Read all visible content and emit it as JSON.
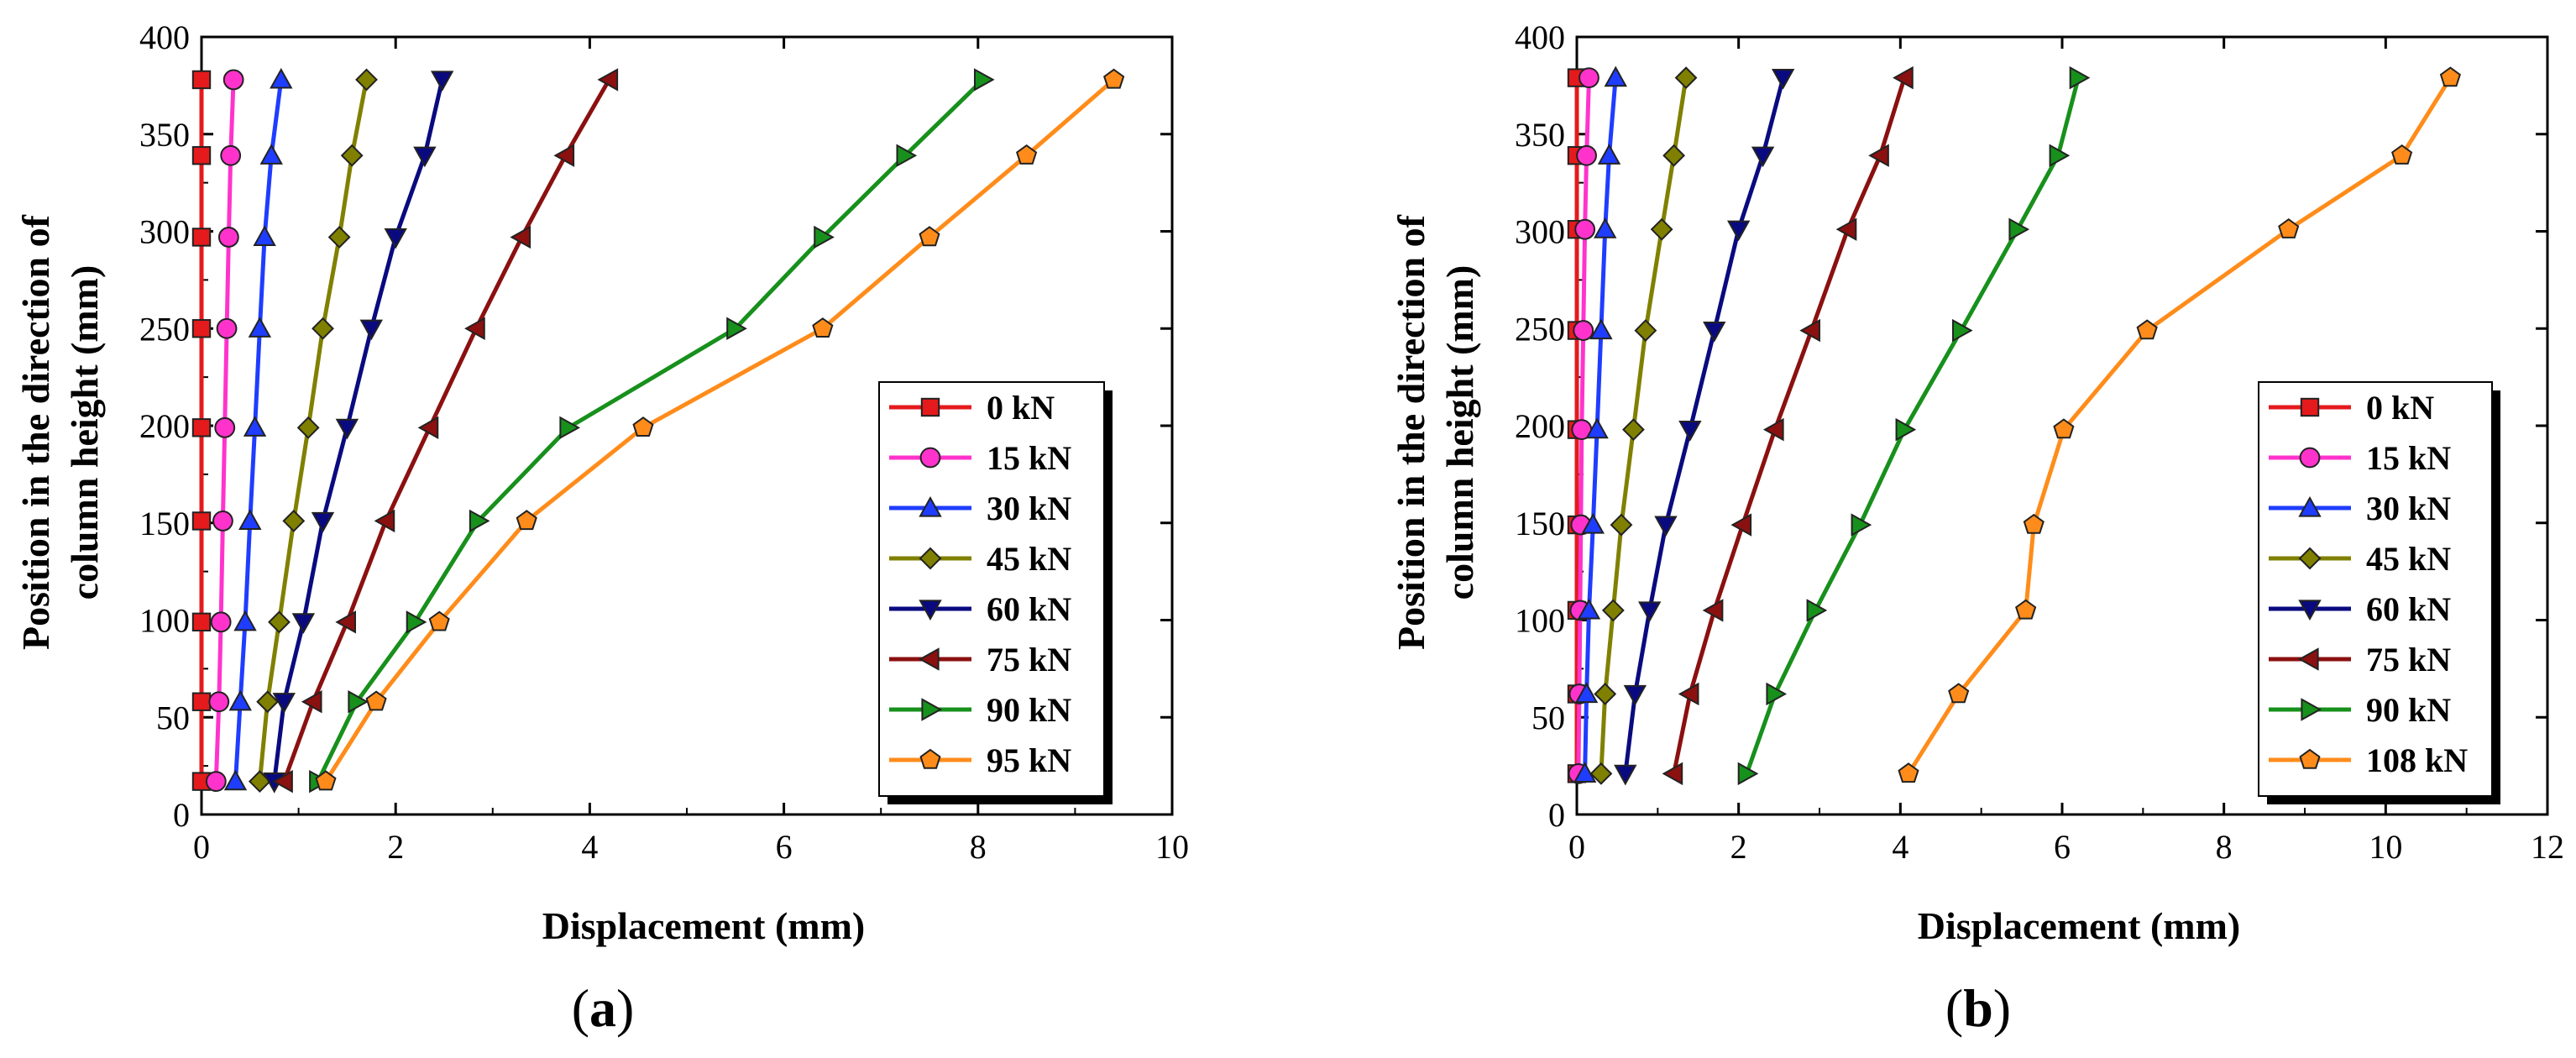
{
  "colors": {
    "0 kN": "#e41a1c",
    "15 kN": "#ff33cc",
    "30 kN": "#1f3dff",
    "45 kN": "#808000",
    "60 kN": "#0a0a80",
    "75 kN": "#8b1010",
    "90 kN": "#17901c",
    "95 kN": "#ff8c1a",
    "108 kN": "#ff8c1a"
  },
  "markers": {
    "0 kN": "square",
    "15 kN": "circle",
    "30 kN": "triangle-up",
    "45 kN": "diamond",
    "60 kN": "triangle-down",
    "75 kN": "triangle-left",
    "90 kN": "triangle-right",
    "95 kN": "pentagon",
    "108 kN": "pentagon"
  },
  "chart_data": [
    {
      "type": "line",
      "panel_label": "a",
      "xlabel": "Displacement (mm)",
      "ylabel_line1": "Position  in the direction of",
      "ylabel_line2": "column height (mm)",
      "xlim": [
        0,
        10
      ],
      "ylim": [
        0,
        400
      ],
      "xticks": [
        0,
        2,
        4,
        6,
        8,
        10
      ],
      "yticks": [
        0,
        50,
        100,
        150,
        200,
        250,
        300,
        350,
        400
      ],
      "legend_position": "bottom-right",
      "series": [
        {
          "name": "0 kN",
          "x": [
            0,
            0,
            0,
            0,
            0,
            0,
            0,
            0,
            0
          ],
          "y": [
            17,
            58,
            99,
            151,
            199,
            250,
            297,
            339,
            378
          ]
        },
        {
          "name": "15 kN",
          "x": [
            0.15,
            0.18,
            0.2,
            0.22,
            0.24,
            0.26,
            0.28,
            0.3,
            0.33
          ],
          "y": [
            17,
            58,
            99,
            151,
            199,
            250,
            297,
            339,
            378
          ]
        },
        {
          "name": "30 kN",
          "x": [
            0.35,
            0.4,
            0.45,
            0.5,
            0.55,
            0.6,
            0.65,
            0.72,
            0.82
          ],
          "y": [
            17,
            58,
            99,
            151,
            199,
            250,
            297,
            339,
            378
          ]
        },
        {
          "name": "45 kN",
          "x": [
            0.6,
            0.68,
            0.8,
            0.95,
            1.1,
            1.25,
            1.42,
            1.55,
            1.7
          ],
          "y": [
            17,
            58,
            99,
            151,
            199,
            250,
            297,
            339,
            378
          ]
        },
        {
          "name": "60 kN",
          "x": [
            0.75,
            0.85,
            1.05,
            1.25,
            1.5,
            1.75,
            2.0,
            2.3,
            2.48
          ],
          "y": [
            17,
            58,
            99,
            151,
            199,
            250,
            297,
            339,
            378
          ]
        },
        {
          "name": "75 kN",
          "x": [
            0.85,
            1.15,
            1.5,
            1.9,
            2.35,
            2.83,
            3.3,
            3.75,
            4.2
          ],
          "y": [
            17,
            58,
            99,
            151,
            199,
            250,
            297,
            339,
            378
          ]
        },
        {
          "name": "90 kN",
          "x": [
            1.2,
            1.6,
            2.2,
            2.85,
            3.78,
            5.5,
            6.4,
            7.25,
            8.05
          ],
          "y": [
            17,
            58,
            99,
            151,
            199,
            250,
            297,
            339,
            378
          ]
        },
        {
          "name": "95 kN",
          "x": [
            1.28,
            1.8,
            2.45,
            3.35,
            4.55,
            6.4,
            7.5,
            8.5,
            9.4
          ],
          "y": [
            17,
            58,
            99,
            151,
            199,
            250,
            297,
            339,
            378
          ]
        }
      ]
    },
    {
      "type": "line",
      "panel_label": "b",
      "xlabel": "Displacement (mm)",
      "ylabel_line1": "Position  in the direction of",
      "ylabel_line2": "column height (mm)",
      "xlim": [
        0,
        12
      ],
      "ylim": [
        0,
        400
      ],
      "xticks": [
        0,
        2,
        4,
        6,
        8,
        10,
        12
      ],
      "yticks": [
        0,
        50,
        100,
        150,
        200,
        250,
        300,
        350,
        400
      ],
      "legend_position": "bottom-right",
      "series": [
        {
          "name": "0 kN",
          "x": [
            0,
            0,
            0,
            0,
            0,
            0,
            0,
            0,
            0
          ],
          "y": [
            21,
            62,
            105,
            149,
            198,
            249,
            301,
            339,
            379
          ]
        },
        {
          "name": "15 kN",
          "x": [
            0.02,
            0.03,
            0.04,
            0.05,
            0.06,
            0.08,
            0.1,
            0.12,
            0.15
          ],
          "y": [
            21,
            62,
            105,
            149,
            198,
            249,
            301,
            339,
            379
          ]
        },
        {
          "name": "30 kN",
          "x": [
            0.1,
            0.12,
            0.15,
            0.2,
            0.25,
            0.3,
            0.35,
            0.4,
            0.48
          ],
          "y": [
            21,
            62,
            105,
            149,
            198,
            249,
            301,
            339,
            379
          ]
        },
        {
          "name": "45 kN",
          "x": [
            0.3,
            0.35,
            0.45,
            0.55,
            0.7,
            0.85,
            1.05,
            1.2,
            1.35
          ],
          "y": [
            21,
            62,
            105,
            149,
            198,
            249,
            301,
            339,
            379
          ]
        },
        {
          "name": "60 kN",
          "x": [
            0.6,
            0.72,
            0.9,
            1.1,
            1.4,
            1.7,
            2.0,
            2.3,
            2.55
          ],
          "y": [
            21,
            62,
            105,
            149,
            198,
            249,
            301,
            339,
            379
          ]
        },
        {
          "name": "75 kN",
          "x": [
            1.2,
            1.4,
            1.7,
            2.05,
            2.45,
            2.9,
            3.35,
            3.75,
            4.05
          ],
          "y": [
            21,
            62,
            105,
            149,
            198,
            249,
            301,
            339,
            379
          ]
        },
        {
          "name": "90 kN",
          "x": [
            2.1,
            2.45,
            2.95,
            3.5,
            4.05,
            4.75,
            5.45,
            5.95,
            6.2
          ],
          "y": [
            21,
            62,
            105,
            149,
            198,
            249,
            301,
            339,
            379
          ]
        },
        {
          "name": "108 kN",
          "x": [
            4.1,
            4.72,
            5.55,
            5.65,
            6.02,
            7.05,
            8.8,
            10.2,
            10.8
          ],
          "y": [
            21,
            62,
            105,
            149,
            198,
            249,
            301,
            339,
            379
          ]
        }
      ]
    }
  ]
}
